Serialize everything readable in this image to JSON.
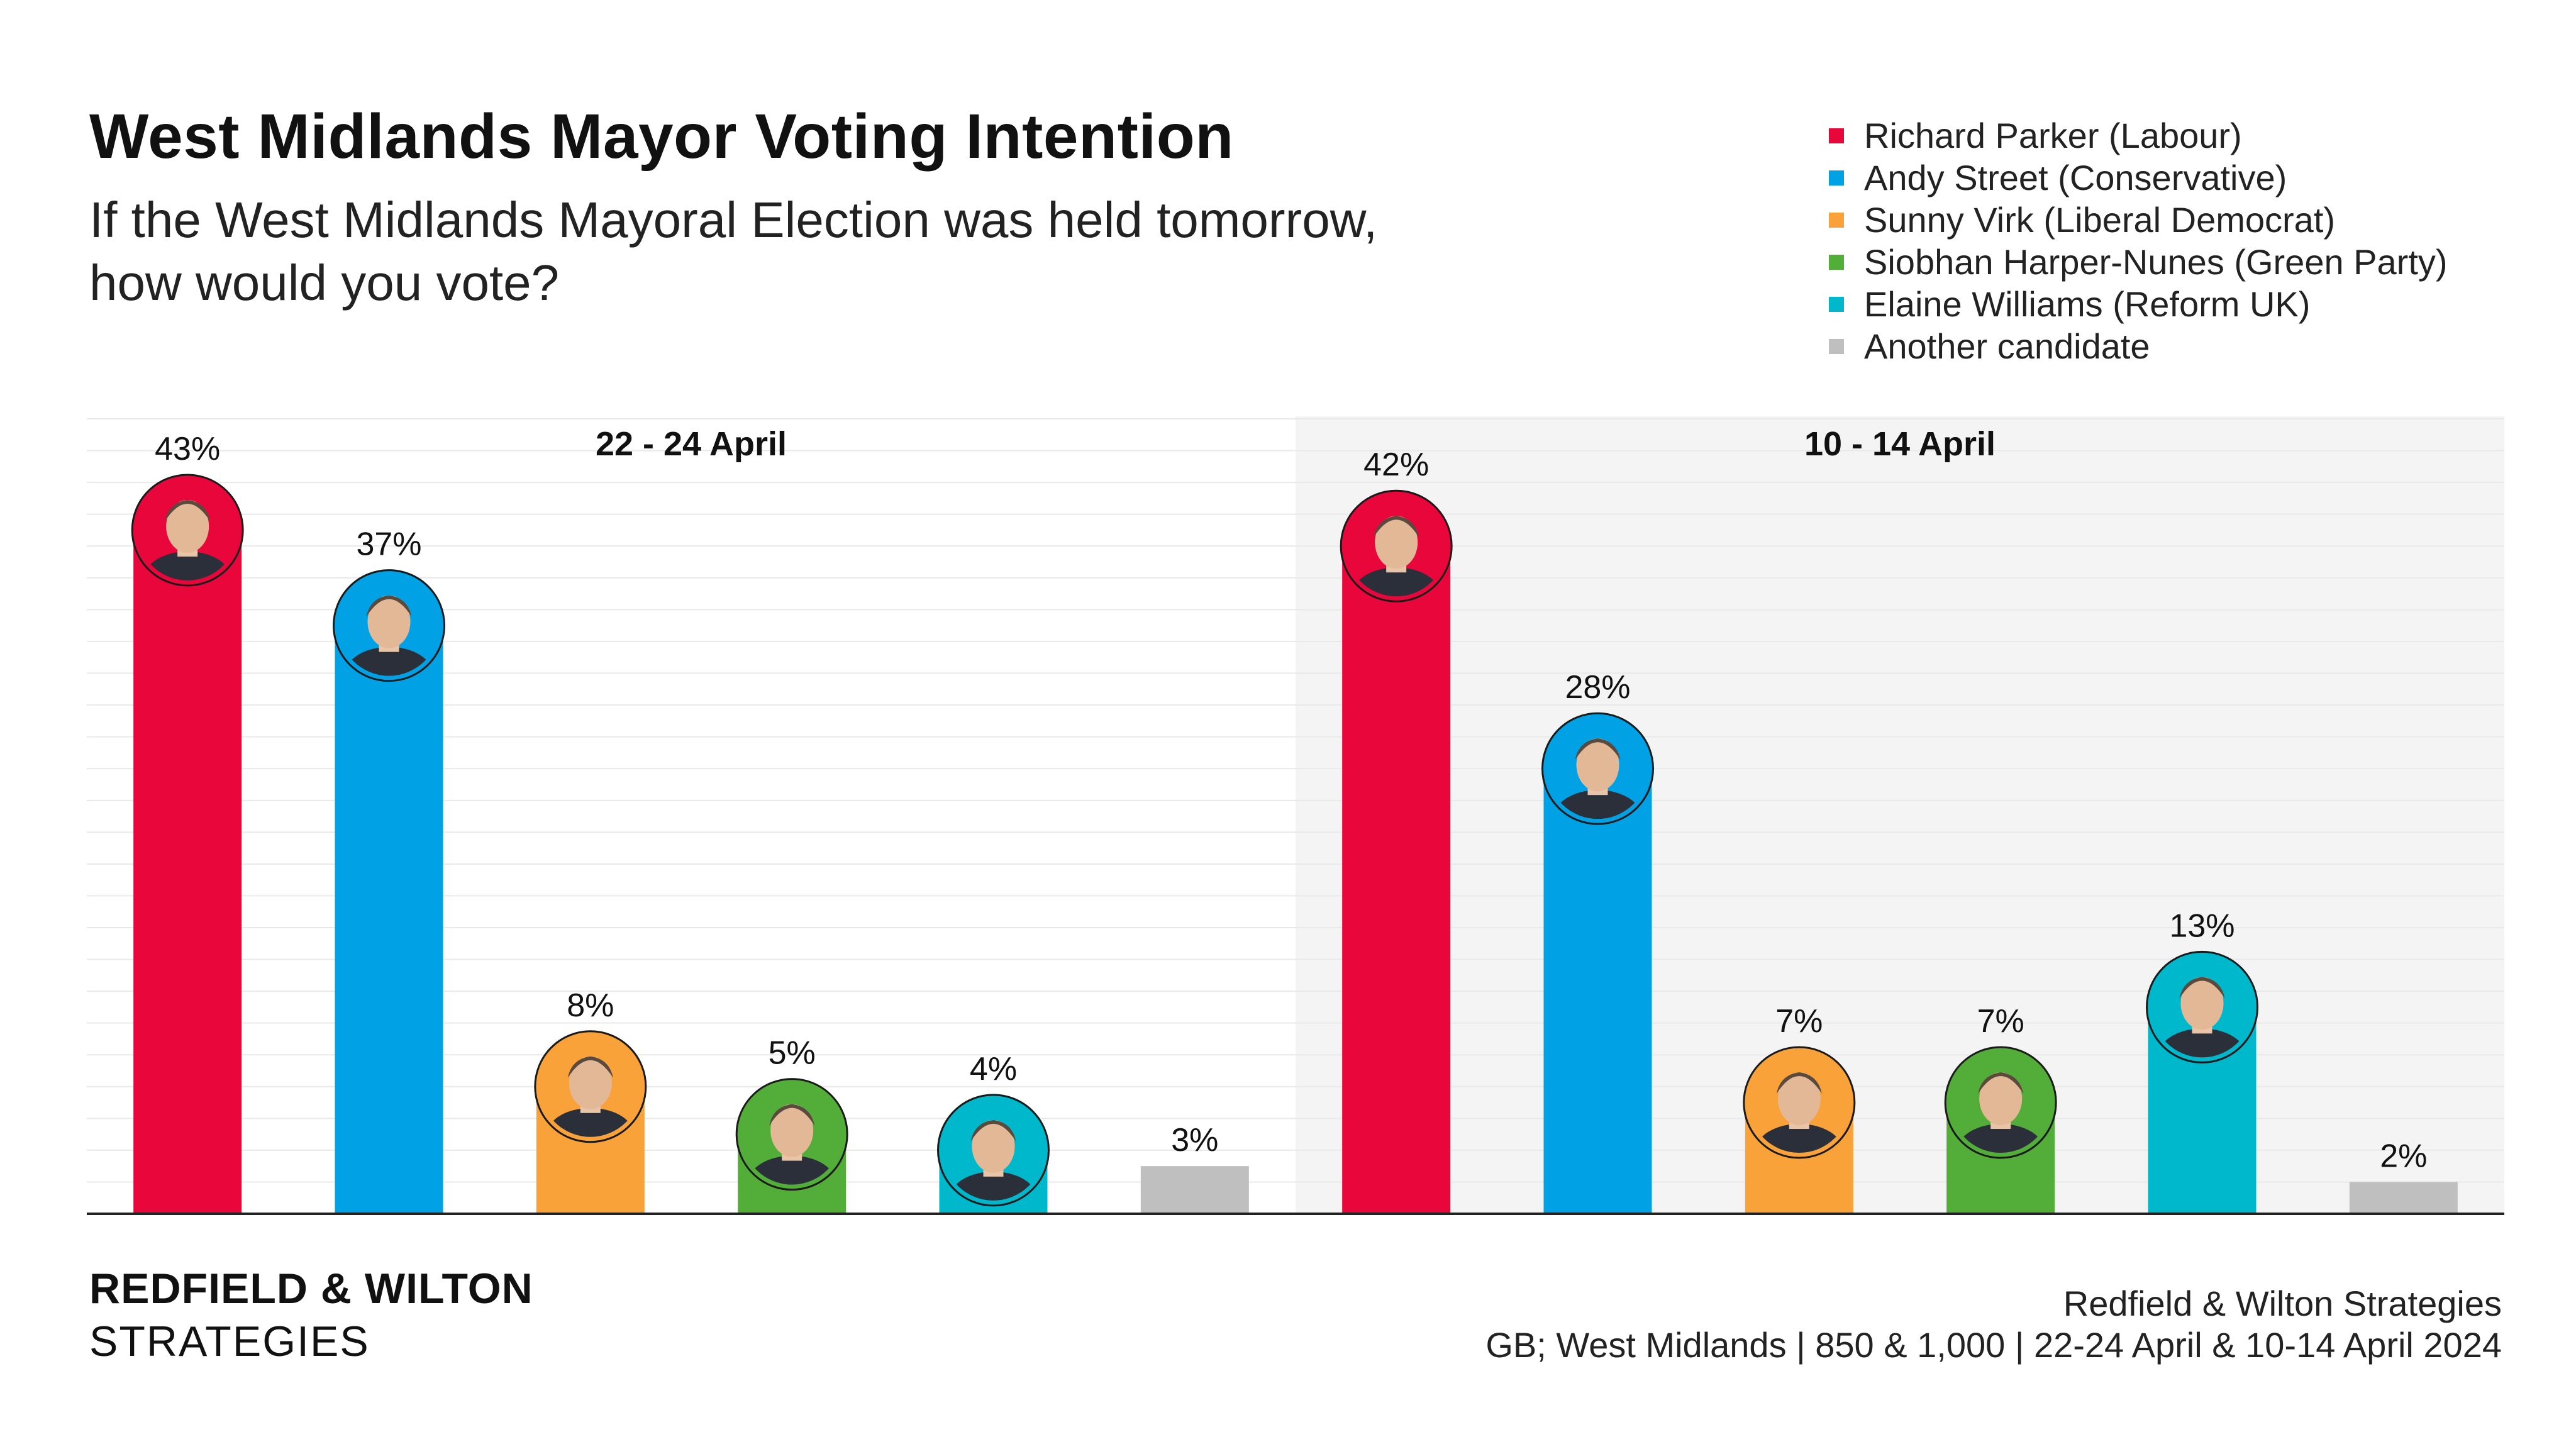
{
  "title": "West Midlands Mayor Voting Intention",
  "subtitle": "If the West Midlands Mayoral Election was held tomorrow, how would you vote?",
  "brand": {
    "line1": "REDFIELD & WILTON",
    "line2": "STRATEGIES"
  },
  "source": {
    "line1": "Redfield & Wilton Strategies",
    "line2": "GB; West Midlands | 850 & 1,000 | 22-24 April & 10-14 April 2024"
  },
  "legend": [
    {
      "label": "Richard Parker (Labour)",
      "color": "#E8063B"
    },
    {
      "label": "Andy Street (Conservative)",
      "color": "#00A2E5"
    },
    {
      "label": "Sunny Virk (Liberal Democrat)",
      "color": "#FAA23A"
    },
    {
      "label": "Siobhan Harper-Nunes (Green Party)",
      "color": "#52AD39"
    },
    {
      "label": "Elaine Williams (Reform UK)",
      "color": "#00B8CB"
    },
    {
      "label": "Another candidate",
      "color": "#BFBFBF"
    }
  ],
  "chart_data": {
    "type": "bar",
    "ylim": [
      0,
      50
    ],
    "grid": true,
    "legend_position": "top-right",
    "categories": [
      "Richard Parker (Labour)",
      "Andy Street (Conservative)",
      "Sunny Virk (Liberal Democrat)",
      "Siobhan Harper-Nunes (Green Party)",
      "Elaine Williams (Reform UK)",
      "Another candidate"
    ],
    "colors": [
      "#E8063B",
      "#00A2E5",
      "#FAA23A",
      "#52AD39",
      "#00B8CB",
      "#BFBFBF"
    ],
    "avatar_icons": [
      "portrait-richard-parker",
      "portrait-andy-street",
      "portrait-sunny-virk",
      "portrait-siobhan-harper-nunes",
      "portrait-elaine-williams",
      null
    ],
    "panels": [
      {
        "title": "22 - 24 April",
        "values": [
          43,
          37,
          8,
          5,
          4,
          3
        ],
        "labels": [
          "43%",
          "37%",
          "8%",
          "5%",
          "4%",
          "3%"
        ],
        "shaded": false
      },
      {
        "title": "10 - 14 April",
        "values": [
          42,
          28,
          7,
          7,
          13,
          2
        ],
        "labels": [
          "42%",
          "28%",
          "7%",
          "7%",
          "13%",
          "2%"
        ],
        "shaded": true
      }
    ]
  }
}
